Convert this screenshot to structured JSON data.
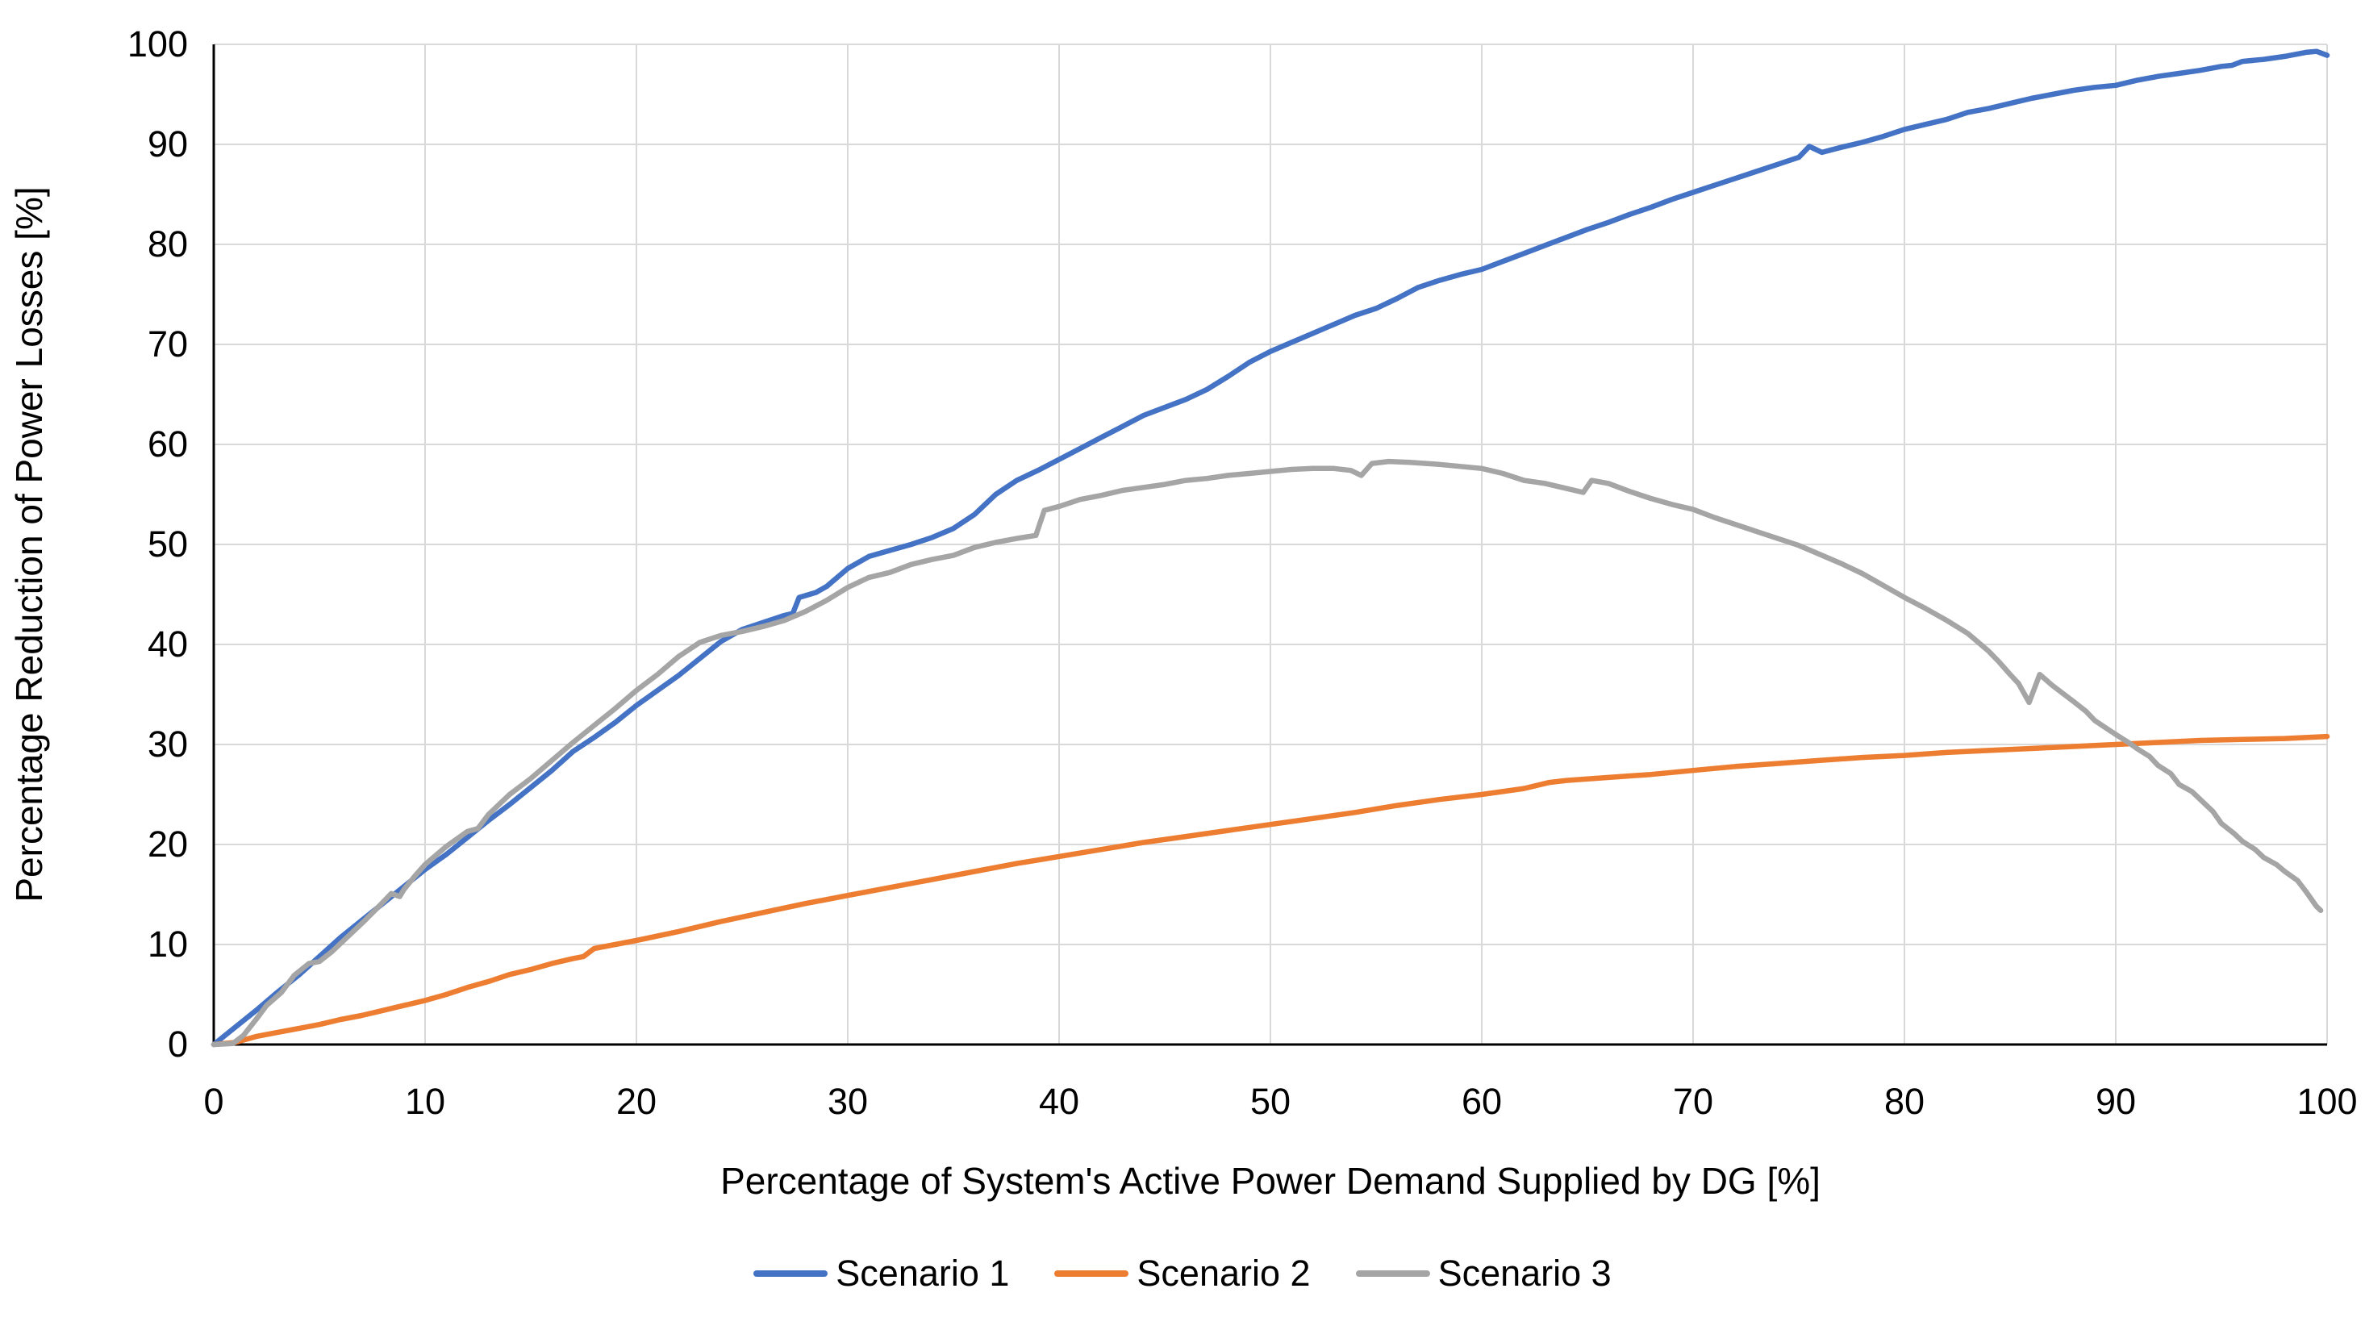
{
  "figure": {
    "background": "#FFFFFF"
  },
  "chart_data": {
    "type": "line",
    "title": "",
    "xlabel": "Percentage of System's Active Power Demand Supplied by DG [%]",
    "ylabel": "Percentage Reduction of Power Losses [%]",
    "xlim": [
      0,
      100
    ],
    "ylim": [
      0,
      100
    ],
    "x_ticks": [
      0,
      10,
      20,
      30,
      40,
      50,
      60,
      70,
      80,
      90,
      100
    ],
    "y_ticks": [
      0,
      10,
      20,
      30,
      40,
      50,
      60,
      70,
      80,
      90,
      100
    ],
    "grid": true,
    "grid_color": "#D9D9D9",
    "axis_color": "#000000",
    "text_color": "#000000",
    "legend_position": "bottom",
    "series": [
      {
        "name": "Scenario 1",
        "color": "#4472C4",
        "points": [
          [
            0,
            0
          ],
          [
            1,
            1.7
          ],
          [
            2,
            3.4
          ],
          [
            3,
            5.2
          ],
          [
            4,
            6.9
          ],
          [
            5,
            8.8
          ],
          [
            6,
            10.7
          ],
          [
            7,
            12.4
          ],
          [
            8,
            14.1
          ],
          [
            9,
            15.8
          ],
          [
            10,
            17.5
          ],
          [
            11,
            19.0
          ],
          [
            12,
            20.7
          ],
          [
            13,
            22.4
          ],
          [
            14,
            24.0
          ],
          [
            15,
            25.7
          ],
          [
            16,
            27.4
          ],
          [
            17,
            29.3
          ],
          [
            18,
            30.7
          ],
          [
            19,
            32.2
          ],
          [
            20,
            33.9
          ],
          [
            21,
            35.4
          ],
          [
            22,
            36.9
          ],
          [
            23,
            38.6
          ],
          [
            24,
            40.3
          ],
          [
            25,
            41.5
          ],
          [
            26,
            42.2
          ],
          [
            27,
            42.9
          ],
          [
            27.4,
            43.1
          ],
          [
            27.7,
            44.7
          ],
          [
            28.5,
            45.2
          ],
          [
            29,
            45.8
          ],
          [
            30,
            47.6
          ],
          [
            31,
            48.8
          ],
          [
            32,
            49.4
          ],
          [
            33,
            50.0
          ],
          [
            34,
            50.7
          ],
          [
            35,
            51.6
          ],
          [
            36,
            53.0
          ],
          [
            37,
            55.0
          ],
          [
            38,
            56.4
          ],
          [
            39,
            57.4
          ],
          [
            40,
            58.5
          ],
          [
            41,
            59.6
          ],
          [
            42,
            60.7
          ],
          [
            43,
            61.8
          ],
          [
            44,
            62.9
          ],
          [
            45,
            63.7
          ],
          [
            46,
            64.5
          ],
          [
            47,
            65.5
          ],
          [
            48,
            66.8
          ],
          [
            49,
            68.2
          ],
          [
            50,
            69.3
          ],
          [
            51,
            70.2
          ],
          [
            52,
            71.1
          ],
          [
            53,
            72.0
          ],
          [
            54,
            72.9
          ],
          [
            55,
            73.6
          ],
          [
            56,
            74.6
          ],
          [
            57,
            75.7
          ],
          [
            58,
            76.4
          ],
          [
            59,
            77.0
          ],
          [
            60,
            77.5
          ],
          [
            61,
            78.3
          ],
          [
            62,
            79.1
          ],
          [
            63,
            79.9
          ],
          [
            64,
            80.7
          ],
          [
            65,
            81.5
          ],
          [
            66,
            82.2
          ],
          [
            67,
            83.0
          ],
          [
            68,
            83.7
          ],
          [
            69,
            84.5
          ],
          [
            70,
            85.2
          ],
          [
            71,
            85.9
          ],
          [
            72,
            86.6
          ],
          [
            73,
            87.3
          ],
          [
            74,
            88.0
          ],
          [
            75,
            88.7
          ],
          [
            75.5,
            89.8
          ],
          [
            76.1,
            89.2
          ],
          [
            77,
            89.7
          ],
          [
            78,
            90.2
          ],
          [
            79,
            90.8
          ],
          [
            80,
            91.5
          ],
          [
            81,
            92.0
          ],
          [
            82,
            92.5
          ],
          [
            83,
            93.2
          ],
          [
            84,
            93.6
          ],
          [
            85,
            94.1
          ],
          [
            86,
            94.6
          ],
          [
            87,
            95.0
          ],
          [
            88,
            95.4
          ],
          [
            89,
            95.7
          ],
          [
            90,
            95.9
          ],
          [
            91,
            96.4
          ],
          [
            92,
            96.8
          ],
          [
            93,
            97.1
          ],
          [
            94,
            97.4
          ],
          [
            95,
            97.8
          ],
          [
            95.5,
            97.9
          ],
          [
            96,
            98.3
          ],
          [
            97,
            98.5
          ],
          [
            98,
            98.8
          ],
          [
            99,
            99.2
          ],
          [
            99.5,
            99.3
          ],
          [
            100,
            98.9
          ]
        ]
      },
      {
        "name": "Scenario 2",
        "color": "#ED7D31",
        "points": [
          [
            0,
            0
          ],
          [
            1,
            0.2
          ],
          [
            2,
            0.8
          ],
          [
            3,
            1.2
          ],
          [
            4,
            1.6
          ],
          [
            5,
            2.0
          ],
          [
            6,
            2.5
          ],
          [
            7,
            2.9
          ],
          [
            8,
            3.4
          ],
          [
            9,
            3.9
          ],
          [
            10,
            4.4
          ],
          [
            11,
            5.0
          ],
          [
            12,
            5.7
          ],
          [
            13,
            6.3
          ],
          [
            14,
            7.0
          ],
          [
            15,
            7.5
          ],
          [
            16,
            8.1
          ],
          [
            17,
            8.6
          ],
          [
            17.5,
            8.8
          ],
          [
            18,
            9.6
          ],
          [
            19,
            10.0
          ],
          [
            20,
            10.4
          ],
          [
            22,
            11.3
          ],
          [
            24,
            12.3
          ],
          [
            26,
            13.2
          ],
          [
            28,
            14.1
          ],
          [
            30,
            14.9
          ],
          [
            32,
            15.7
          ],
          [
            34,
            16.5
          ],
          [
            36,
            17.3
          ],
          [
            38,
            18.1
          ],
          [
            40,
            18.8
          ],
          [
            42,
            19.5
          ],
          [
            44,
            20.2
          ],
          [
            46,
            20.8
          ],
          [
            48,
            21.4
          ],
          [
            50,
            22.0
          ],
          [
            52,
            22.6
          ],
          [
            54,
            23.2
          ],
          [
            56,
            23.9
          ],
          [
            58,
            24.5
          ],
          [
            60,
            25.0
          ],
          [
            62,
            25.6
          ],
          [
            62.6,
            25.9
          ],
          [
            63.2,
            26.2
          ],
          [
            64,
            26.4
          ],
          [
            66,
            26.7
          ],
          [
            68,
            27.0
          ],
          [
            70,
            27.4
          ],
          [
            72,
            27.8
          ],
          [
            74,
            28.1
          ],
          [
            76,
            28.4
          ],
          [
            78,
            28.7
          ],
          [
            80,
            28.9
          ],
          [
            82,
            29.2
          ],
          [
            84,
            29.4
          ],
          [
            86,
            29.6
          ],
          [
            88,
            29.8
          ],
          [
            90,
            30.0
          ],
          [
            92,
            30.2
          ],
          [
            94,
            30.4
          ],
          [
            96,
            30.5
          ],
          [
            98,
            30.6
          ],
          [
            100,
            30.8
          ]
        ]
      },
      {
        "name": "Scenario 3",
        "color": "#A5A5A5",
        "points": [
          [
            0,
            0
          ],
          [
            0.9,
            0.1
          ],
          [
            1.4,
            0.9
          ],
          [
            2,
            2.5
          ],
          [
            2.5,
            3.9
          ],
          [
            3.2,
            5.2
          ],
          [
            3.8,
            6.9
          ],
          [
            4.5,
            8.1
          ],
          [
            5,
            8.3
          ],
          [
            5.6,
            9.3
          ],
          [
            6.4,
            10.9
          ],
          [
            7.1,
            12.3
          ],
          [
            7.9,
            14.0
          ],
          [
            8.4,
            15.1
          ],
          [
            8.8,
            14.8
          ],
          [
            9,
            15.5
          ],
          [
            9.5,
            16.8
          ],
          [
            10,
            18.0
          ],
          [
            11,
            19.8
          ],
          [
            12,
            21.3
          ],
          [
            12.5,
            21.6
          ],
          [
            13,
            23.0
          ],
          [
            14,
            25.0
          ],
          [
            15,
            26.6
          ],
          [
            16,
            28.4
          ],
          [
            17,
            30.2
          ],
          [
            18,
            31.9
          ],
          [
            19,
            33.6
          ],
          [
            20,
            35.4
          ],
          [
            21,
            37.0
          ],
          [
            22,
            38.8
          ],
          [
            23,
            40.2
          ],
          [
            24,
            40.9
          ],
          [
            25,
            41.3
          ],
          [
            26,
            41.8
          ],
          [
            27,
            42.4
          ],
          [
            28,
            43.3
          ],
          [
            29,
            44.4
          ],
          [
            30,
            45.7
          ],
          [
            31,
            46.7
          ],
          [
            32,
            47.2
          ],
          [
            33,
            48.0
          ],
          [
            34,
            48.5
          ],
          [
            35,
            48.9
          ],
          [
            36,
            49.7
          ],
          [
            37,
            50.2
          ],
          [
            38,
            50.6
          ],
          [
            38.9,
            50.9
          ],
          [
            39.3,
            53.4
          ],
          [
            40,
            53.8
          ],
          [
            41,
            54.5
          ],
          [
            42,
            54.9
          ],
          [
            43,
            55.4
          ],
          [
            44,
            55.7
          ],
          [
            45,
            56.0
          ],
          [
            46,
            56.4
          ],
          [
            47,
            56.6
          ],
          [
            48,
            56.9
          ],
          [
            49,
            57.1
          ],
          [
            50,
            57.3
          ],
          [
            51,
            57.5
          ],
          [
            52,
            57.6
          ],
          [
            53,
            57.6
          ],
          [
            53.8,
            57.4
          ],
          [
            54.3,
            56.9
          ],
          [
            54.8,
            58.1
          ],
          [
            55.6,
            58.3
          ],
          [
            56.6,
            58.2
          ],
          [
            58,
            58.0
          ],
          [
            59,
            57.8
          ],
          [
            60,
            57.6
          ],
          [
            61,
            57.1
          ],
          [
            62,
            56.4
          ],
          [
            63,
            56.1
          ],
          [
            64,
            55.6
          ],
          [
            64.8,
            55.2
          ],
          [
            65.2,
            56.4
          ],
          [
            66,
            56.1
          ],
          [
            67,
            55.3
          ],
          [
            68,
            54.6
          ],
          [
            69,
            54.0
          ],
          [
            70,
            53.5
          ],
          [
            71,
            52.7
          ],
          [
            72,
            52.0
          ],
          [
            73,
            51.3
          ],
          [
            74,
            50.6
          ],
          [
            75,
            49.9
          ],
          [
            76,
            49.0
          ],
          [
            77,
            48.1
          ],
          [
            78,
            47.1
          ],
          [
            79,
            45.9
          ],
          [
            80,
            44.7
          ],
          [
            81,
            43.6
          ],
          [
            82,
            42.4
          ],
          [
            83,
            41.1
          ],
          [
            83.5,
            40.2
          ],
          [
            84,
            39.3
          ],
          [
            84.5,
            38.2
          ],
          [
            85,
            37.0
          ],
          [
            85.4,
            36.1
          ],
          [
            85.9,
            34.2
          ],
          [
            86.4,
            37.0
          ],
          [
            87,
            35.9
          ],
          [
            88,
            34.3
          ],
          [
            88.6,
            33.3
          ],
          [
            89,
            32.4
          ],
          [
            89.5,
            31.7
          ],
          [
            90,
            31.0
          ],
          [
            90.6,
            30.2
          ],
          [
            91,
            29.6
          ],
          [
            91.6,
            28.8
          ],
          [
            92,
            27.9
          ],
          [
            92.6,
            27.1
          ],
          [
            93,
            26.0
          ],
          [
            93.6,
            25.3
          ],
          [
            94,
            24.5
          ],
          [
            94.6,
            23.3
          ],
          [
            95,
            22.1
          ],
          [
            95.6,
            21.1
          ],
          [
            96,
            20.3
          ],
          [
            96.6,
            19.5
          ],
          [
            97,
            18.7
          ],
          [
            97.6,
            18.0
          ],
          [
            98,
            17.3
          ],
          [
            98.6,
            16.4
          ],
          [
            99,
            15.3
          ],
          [
            99.5,
            13.8
          ],
          [
            99.7,
            13.4
          ]
        ]
      }
    ]
  }
}
